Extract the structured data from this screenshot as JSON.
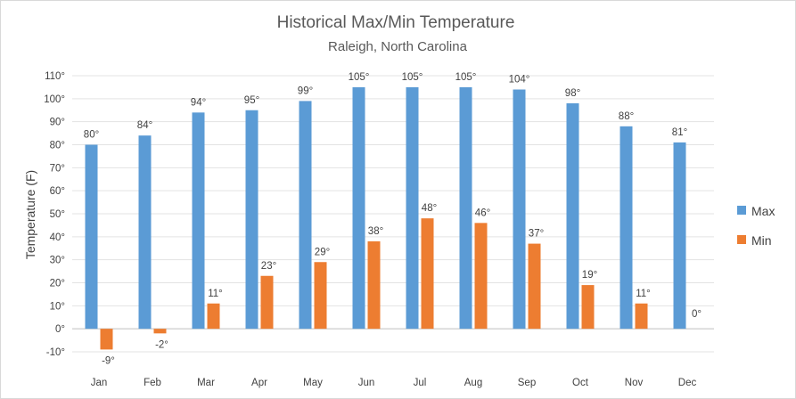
{
  "chart_data": {
    "type": "bar",
    "title": "Historical Max/Min Temperature",
    "subtitle": "Raleigh, North Carolina",
    "xlabel": "",
    "ylabel": "Temperature (F)",
    "ylim": [
      -10,
      110
    ],
    "ytick_step": 10,
    "ytick_labels": [
      "-10°",
      "0°",
      "10°",
      "20°",
      "30°",
      "40°",
      "50°",
      "60°",
      "70°",
      "80°",
      "90°",
      "100°",
      "110°"
    ],
    "grid": true,
    "legend_position": "right",
    "categories": [
      "Jan",
      "Feb",
      "Mar",
      "Apr",
      "May",
      "Jun",
      "Jul",
      "Aug",
      "Sep",
      "Oct",
      "Nov",
      "Dec"
    ],
    "series": [
      {
        "name": "Max",
        "color": "#5b9bd5",
        "values": [
          80,
          84,
          94,
          95,
          99,
          105,
          105,
          105,
          104,
          98,
          88,
          81
        ],
        "labels": [
          "80°",
          "84°",
          "94°",
          "95°",
          "99°",
          "105°",
          "105°",
          "105°",
          "104°",
          "98°",
          "88°",
          "81°"
        ]
      },
      {
        "name": "Min",
        "color": "#ed7d31",
        "values": [
          -9,
          -2,
          11,
          23,
          29,
          38,
          48,
          46,
          37,
          19,
          11,
          0
        ],
        "labels": [
          "-9°",
          "-2°",
          "11°",
          "23°",
          "29°",
          "38°",
          "48°",
          "46°",
          "37°",
          "19°",
          "11°",
          "0°"
        ]
      }
    ]
  }
}
